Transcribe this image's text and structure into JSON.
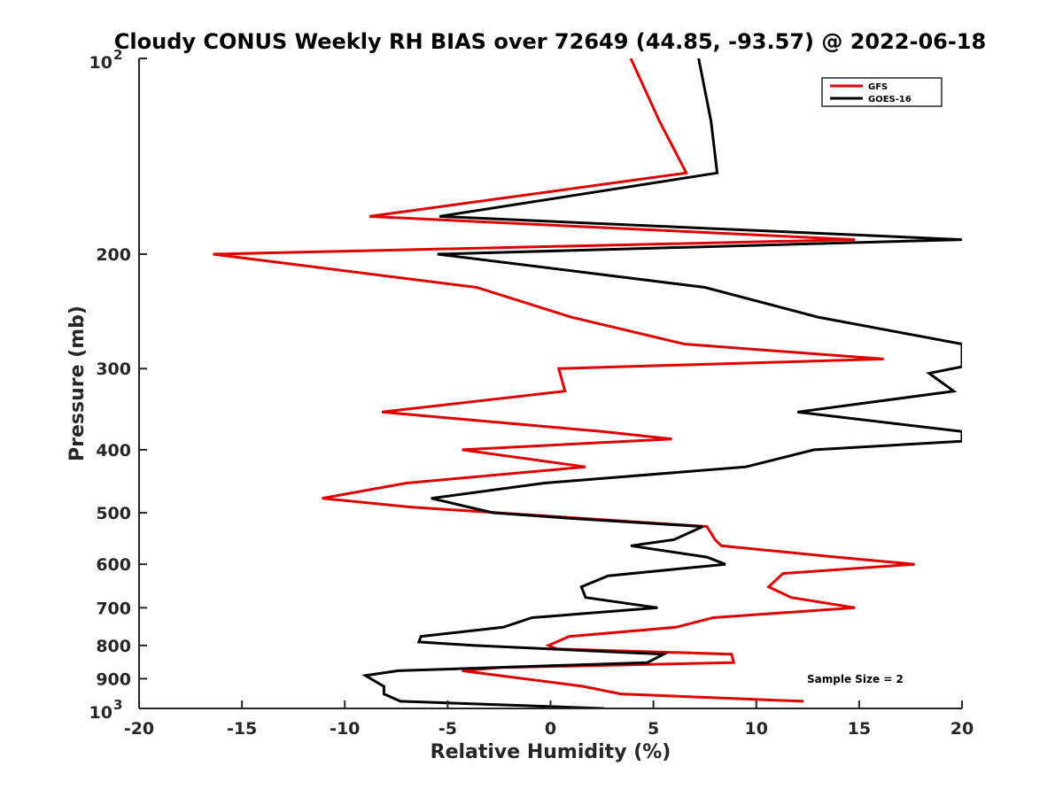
{
  "chart_data": {
    "type": "line",
    "title": "Cloudy CONUS Weekly RH BIAS over 72649 (44.85, -93.57) @ 2022-06-18",
    "xlabel": "Relative Humidity (%)",
    "ylabel": "Pressure (mb)",
    "xlim": [
      -20,
      20
    ],
    "ylim": [
      100,
      1000
    ],
    "y_scale": "log",
    "y_reversed": true,
    "grid": false,
    "legend_position": "top-right",
    "x_ticks": [
      -20,
      -15,
      -10,
      -5,
      0,
      5,
      10,
      15,
      20
    ],
    "x_tick_labels": [
      "-20",
      "-15",
      "-10",
      "-5",
      "0",
      "5",
      "10",
      "15",
      "20"
    ],
    "y_ticks": [
      100,
      200,
      300,
      400,
      500,
      600,
      700,
      800,
      900,
      1000
    ],
    "y_tick_labels": [
      {
        "base": "10",
        "exp": "2"
      },
      {
        "base": "200",
        "exp": ""
      },
      {
        "base": "300",
        "exp": ""
      },
      {
        "base": "400",
        "exp": ""
      },
      {
        "base": "500",
        "exp": ""
      },
      {
        "base": "600",
        "exp": ""
      },
      {
        "base": "700",
        "exp": ""
      },
      {
        "base": "800",
        "exp": ""
      },
      {
        "base": "900",
        "exp": ""
      },
      {
        "base": "10",
        "exp": "3"
      }
    ],
    "annotation": "Sample Size = 2",
    "series": [
      {
        "name": "GFS",
        "color": "#e00000",
        "points": [
          [
            3.9,
            100
          ],
          [
            5.3,
            125
          ],
          [
            6.6,
            150
          ],
          [
            -8.8,
            175
          ],
          [
            14.8,
            190
          ],
          [
            -16.4,
            200
          ],
          [
            -3.6,
            225
          ],
          [
            1.0,
            250
          ],
          [
            6.5,
            275
          ],
          [
            16.2,
            290
          ],
          [
            0.4,
            300
          ],
          [
            0.7,
            325
          ],
          [
            -8.2,
            350
          ],
          [
            2.5,
            375
          ],
          [
            5.9,
            385
          ],
          [
            -4.3,
            400
          ],
          [
            1.7,
            425
          ],
          [
            -7.0,
            450
          ],
          [
            -11.1,
            475
          ],
          [
            -6.8,
            490
          ],
          [
            -2.6,
            500
          ],
          [
            7.6,
            525
          ],
          [
            8.0,
            550
          ],
          [
            8.3,
            562
          ],
          [
            13.9,
            585
          ],
          [
            17.7,
            600
          ],
          [
            11.3,
            620
          ],
          [
            10.6,
            650
          ],
          [
            11.7,
            675
          ],
          [
            14.8,
            700
          ],
          [
            7.9,
            725
          ],
          [
            6.1,
            750
          ],
          [
            0.9,
            775
          ],
          [
            -0.1,
            800
          ],
          [
            0.3,
            810
          ],
          [
            8.8,
            825
          ],
          [
            8.9,
            850
          ],
          [
            -2.4,
            865
          ],
          [
            -4.3,
            875
          ],
          [
            1.6,
            925
          ],
          [
            3.4,
            950
          ],
          [
            12.3,
            975
          ]
        ]
      },
      {
        "name": "GOES-16",
        "color": "#000000",
        "points": [
          [
            7.2,
            100
          ],
          [
            7.8,
            125
          ],
          [
            8.1,
            150
          ],
          [
            -5.4,
            175
          ],
          [
            20.0,
            190
          ],
          [
            -5.5,
            200
          ],
          [
            7.5,
            225
          ],
          [
            13.0,
            250
          ],
          [
            20.0,
            275
          ],
          [
            20.0,
            298
          ],
          [
            18.4,
            305
          ],
          [
            19.6,
            325
          ],
          [
            12.0,
            350
          ],
          [
            20.0,
            375
          ],
          [
            20.0,
            388
          ],
          [
            12.8,
            400
          ],
          [
            9.5,
            425
          ],
          [
            -0.3,
            450
          ],
          [
            -5.8,
            475
          ],
          [
            -2.8,
            500
          ],
          [
            1.0,
            510
          ],
          [
            7.4,
            525
          ],
          [
            6.0,
            550
          ],
          [
            3.9,
            562
          ],
          [
            7.6,
            585
          ],
          [
            8.5,
            600
          ],
          [
            2.8,
            625
          ],
          [
            1.5,
            650
          ],
          [
            1.7,
            675
          ],
          [
            5.2,
            700
          ],
          [
            -0.9,
            725
          ],
          [
            -2.3,
            750
          ],
          [
            -6.3,
            775
          ],
          [
            -6.4,
            790
          ],
          [
            -3.7,
            800
          ],
          [
            5.5,
            825
          ],
          [
            4.7,
            850
          ],
          [
            -7.4,
            875
          ],
          [
            -9.0,
            890
          ],
          [
            -8.1,
            925
          ],
          [
            -8.1,
            950
          ],
          [
            -7.3,
            975
          ],
          [
            2.6,
            1000
          ]
        ]
      }
    ]
  }
}
